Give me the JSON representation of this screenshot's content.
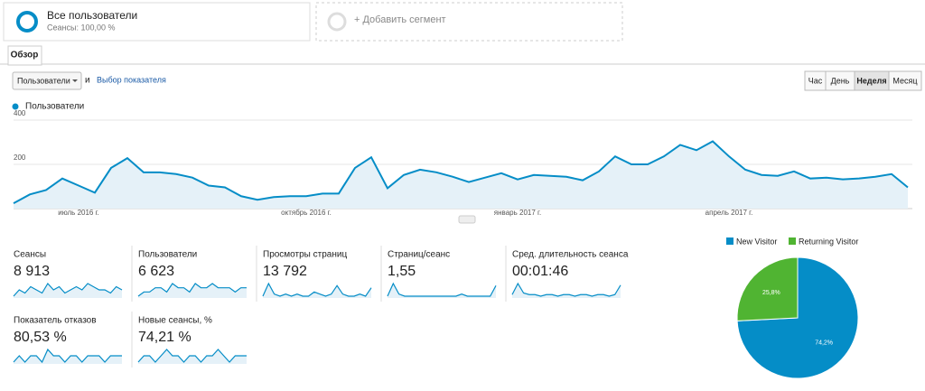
{
  "segments": {
    "active": {
      "title": "Все пользователи",
      "subtitle": "Сеансы: 100,00 %"
    },
    "add": "+ Добавить сегмент"
  },
  "tab": "Обзор",
  "controls": {
    "metric_select": "Пользователи",
    "and": "и",
    "pick_metric": "Выбор показателя",
    "periods": [
      "Час",
      "День",
      "Неделя",
      "Месяц"
    ],
    "active_period": "Неделя"
  },
  "chart_data": [
    {
      "type": "area",
      "series": [
        {
          "name": "Пользователи",
          "color": "#058dc7",
          "values": [
            24,
            64,
            84,
            136,
            104,
            72,
            184,
            228,
            164,
            164,
            156,
            140,
            104,
            96,
            56,
            40,
            52,
            56,
            56,
            68,
            68,
            184,
            232,
            92,
            152,
            176,
            164,
            144,
            120,
            140,
            160,
            132,
            152,
            148,
            144,
            128,
            168,
            236,
            200,
            200,
            236,
            288,
            264,
            304,
            236,
            176,
            152,
            148,
            168,
            136,
            140,
            132,
            136,
            144,
            156,
            96
          ]
        }
      ],
      "categories": [
        null,
        null,
        null,
        null,
        "июль 2016 г.",
        null,
        null,
        null,
        null,
        null,
        null,
        null,
        null,
        null,
        null,
        null,
        null,
        null,
        "октябрь 2016 г.",
        null,
        null,
        null,
        null,
        null,
        null,
        null,
        null,
        null,
        null,
        null,
        null,
        "январь 2017 г.",
        null,
        null,
        null,
        null,
        null,
        null,
        null,
        null,
        null,
        null,
        null,
        null,
        "апрель 2017 г.",
        null,
        null,
        null,
        null,
        null,
        null,
        null,
        null,
        null,
        null,
        null
      ],
      "ylim": [
        0,
        400
      ],
      "yticks": [
        200,
        400
      ],
      "grid": true
    },
    {
      "type": "pie",
      "categories": [
        "New Visitor",
        "Returning Visitor"
      ],
      "values": [
        74.2,
        25.8
      ],
      "value_labels": [
        "74,2%",
        "25,8%"
      ],
      "colors": [
        "#058dc7",
        "#50b432"
      ]
    }
  ],
  "metrics": [
    {
      "label": "Сеансы",
      "value": "8 913",
      "spark": [
        3,
        5,
        4,
        6,
        5,
        4,
        7,
        5,
        6,
        4,
        5,
        6,
        5,
        7,
        6,
        5,
        5,
        4,
        6,
        5
      ]
    },
    {
      "label": "Пользователи",
      "value": "6 623",
      "spark": [
        3,
        4,
        4,
        5,
        5,
        4,
        6,
        5,
        5,
        4,
        6,
        5,
        5,
        6,
        5,
        5,
        5,
        4,
        5,
        5
      ]
    },
    {
      "label": "Просмотры страниц",
      "value": "13 792",
      "spark": [
        3,
        9,
        4,
        3,
        4,
        3,
        4,
        3,
        3,
        5,
        4,
        3,
        4,
        8,
        4,
        3,
        3,
        4,
        3,
        7
      ]
    },
    {
      "label": "Страниц/сеанс",
      "value": "1,55",
      "spark": [
        2,
        8,
        3,
        2,
        2,
        2,
        2,
        2,
        2,
        2,
        2,
        2,
        2,
        3,
        2,
        2,
        2,
        2,
        2,
        7
      ]
    },
    {
      "label": "Сред. длительность сеанса",
      "value": "00:01:46",
      "spark": [
        3,
        10,
        4,
        3,
        3,
        2,
        3,
        3,
        2,
        3,
        3,
        2,
        3,
        3,
        2,
        3,
        3,
        2,
        3,
        9
      ]
    },
    {
      "label": "Показатель отказов",
      "value": "80,53 %",
      "spark": [
        5,
        6,
        5,
        6,
        6,
        5,
        7,
        6,
        6,
        5,
        6,
        6,
        5,
        6,
        6,
        6,
        5,
        6,
        6,
        6
      ]
    },
    {
      "label": "Новые сеансы, %",
      "value": "74,21 %",
      "spark": [
        5,
        6,
        6,
        5,
        6,
        7,
        6,
        6,
        5,
        6,
        6,
        5,
        6,
        6,
        7,
        6,
        5,
        6,
        6,
        6
      ]
    }
  ]
}
